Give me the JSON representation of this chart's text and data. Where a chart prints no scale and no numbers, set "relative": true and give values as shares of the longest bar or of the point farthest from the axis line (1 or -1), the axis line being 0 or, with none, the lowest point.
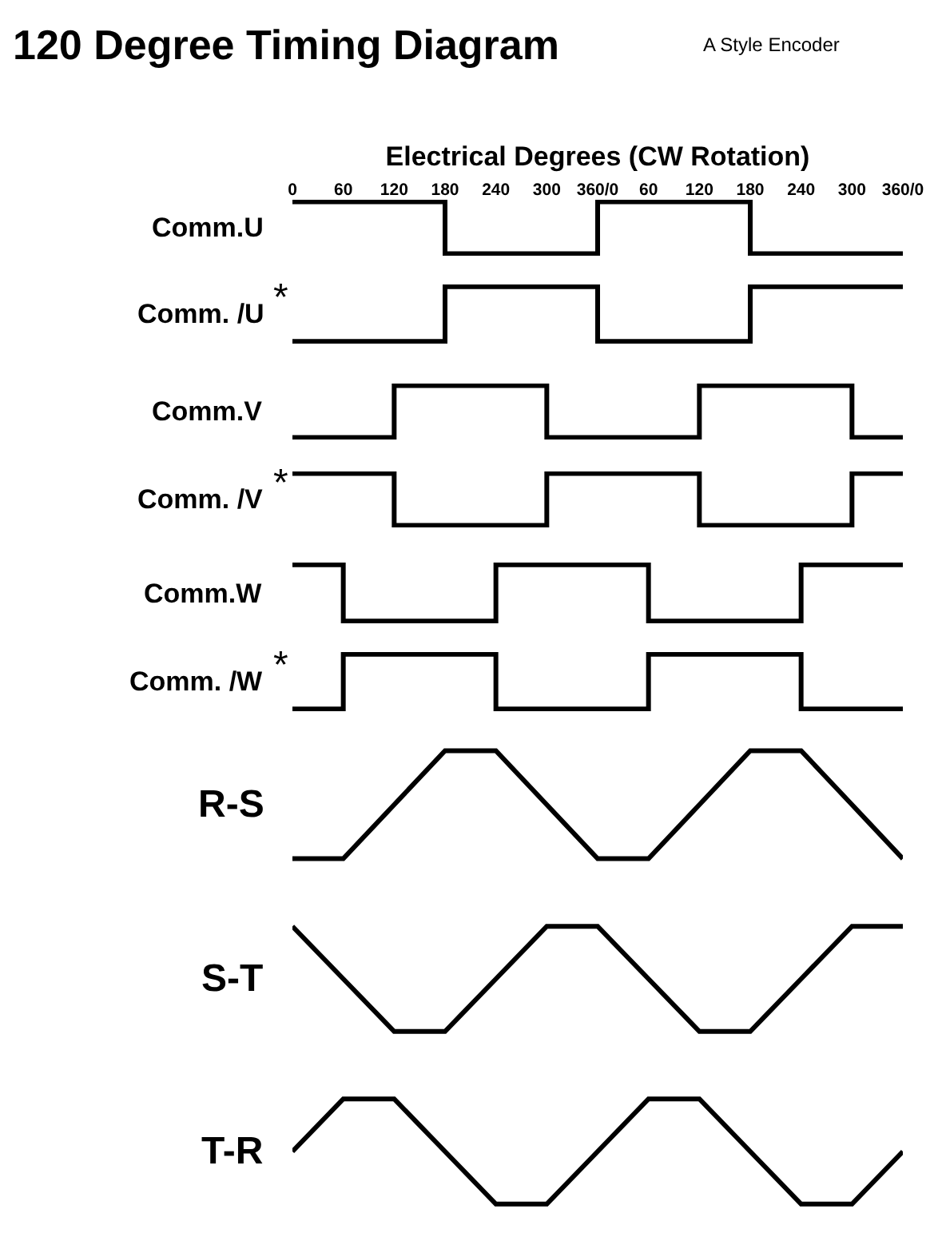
{
  "chart_data": [
    {
      "type": "step",
      "title": "120 Degree Timing Diagram",
      "subtitle": "A Style Encoder",
      "x2label": "Electrical Degrees (CW Rotation)",
      "categories": [
        "0",
        "60",
        "120",
        "180",
        "240",
        "300",
        "360/0",
        "60",
        "120",
        "180",
        "240",
        "300",
        "360/0"
      ],
      "ylabel": "Comm.U",
      "relative": true,
      "series": [
        {
          "color": "#000000",
          "values": [
            1,
            1,
            1,
            0,
            0,
            0,
            1,
            1,
            1,
            0,
            0,
            0,
            0
          ]
        }
      ]
    },
    {
      "type": "step",
      "ylabel": "Comm. /U",
      "annotations": [
        "*"
      ],
      "relative": true,
      "categories": [
        null,
        null,
        null,
        null,
        null,
        null,
        null,
        null,
        null,
        null,
        null,
        null,
        null
      ],
      "series": [
        {
          "color": "#000000",
          "values": [
            0,
            0,
            0,
            1,
            1,
            1,
            0,
            0,
            0,
            1,
            1,
            1,
            1
          ]
        }
      ]
    },
    {
      "type": "step",
      "ylabel": "Comm.V",
      "relative": true,
      "categories": [
        null,
        null,
        null,
        null,
        null,
        null,
        null,
        null,
        null,
        null,
        null,
        null,
        null
      ],
      "series": [
        {
          "color": "#000000",
          "values": [
            0,
            0,
            1,
            1,
            1,
            0,
            0,
            0,
            1,
            1,
            1,
            0,
            0
          ]
        }
      ]
    },
    {
      "type": "step",
      "ylabel": "Comm. /V",
      "annotations": [
        "*"
      ],
      "relative": true,
      "categories": [
        null,
        null,
        null,
        null,
        null,
        null,
        null,
        null,
        null,
        null,
        null,
        null,
        null
      ],
      "series": [
        {
          "color": "#000000",
          "values": [
            1,
            1,
            0,
            0,
            0,
            1,
            1,
            1,
            0,
            0,
            0,
            1,
            1
          ]
        }
      ]
    },
    {
      "type": "step",
      "ylabel": "Comm.W",
      "relative": true,
      "categories": [
        null,
        null,
        null,
        null,
        null,
        null,
        null,
        null,
        null,
        null,
        null,
        null,
        null
      ],
      "series": [
        {
          "color": "#000000",
          "values": [
            1,
            0,
            0,
            0,
            1,
            1,
            1,
            0,
            0,
            0,
            1,
            1,
            1
          ]
        }
      ]
    },
    {
      "type": "step",
      "ylabel": "Comm. /W",
      "annotations": [
        "*"
      ],
      "relative": true,
      "categories": [
        null,
        null,
        null,
        null,
        null,
        null,
        null,
        null,
        null,
        null,
        null,
        null,
        null
      ],
      "series": [
        {
          "color": "#000000",
          "values": [
            0,
            1,
            1,
            1,
            0,
            0,
            0,
            1,
            1,
            1,
            0,
            0,
            0
          ]
        }
      ]
    },
    {
      "type": "line",
      "ylabel": "R-S",
      "relative": true,
      "categories": [
        null,
        null,
        null,
        null,
        null,
        null,
        null,
        null,
        null,
        null,
        null,
        null,
        null
      ],
      "series": [
        {
          "color": "#000000",
          "values": [
            0,
            0,
            0.5,
            1,
            1,
            0.5,
            0,
            0,
            0.5,
            1,
            1,
            0.5,
            0
          ]
        }
      ]
    },
    {
      "type": "line",
      "ylabel": "S-T",
      "relative": true,
      "categories": [
        null,
        null,
        null,
        null,
        null,
        null,
        null,
        null,
        null,
        null,
        null,
        null,
        null
      ],
      "series": [
        {
          "color": "#000000",
          "values": [
            1,
            0.5,
            0,
            0,
            0.5,
            1,
            1,
            0.5,
            0,
            0,
            0.5,
            1,
            1
          ]
        }
      ]
    },
    {
      "type": "line",
      "ylabel": "T-R",
      "relative": true,
      "categories": [
        null,
        null,
        null,
        null,
        null,
        null,
        null,
        null,
        null,
        null,
        null,
        null,
        null
      ],
      "series": [
        {
          "color": "#000000",
          "values": [
            0.5,
            1,
            1,
            0.5,
            0,
            0,
            0.5,
            1,
            1,
            0.5,
            0,
            0,
            0.5
          ]
        }
      ]
    }
  ]
}
